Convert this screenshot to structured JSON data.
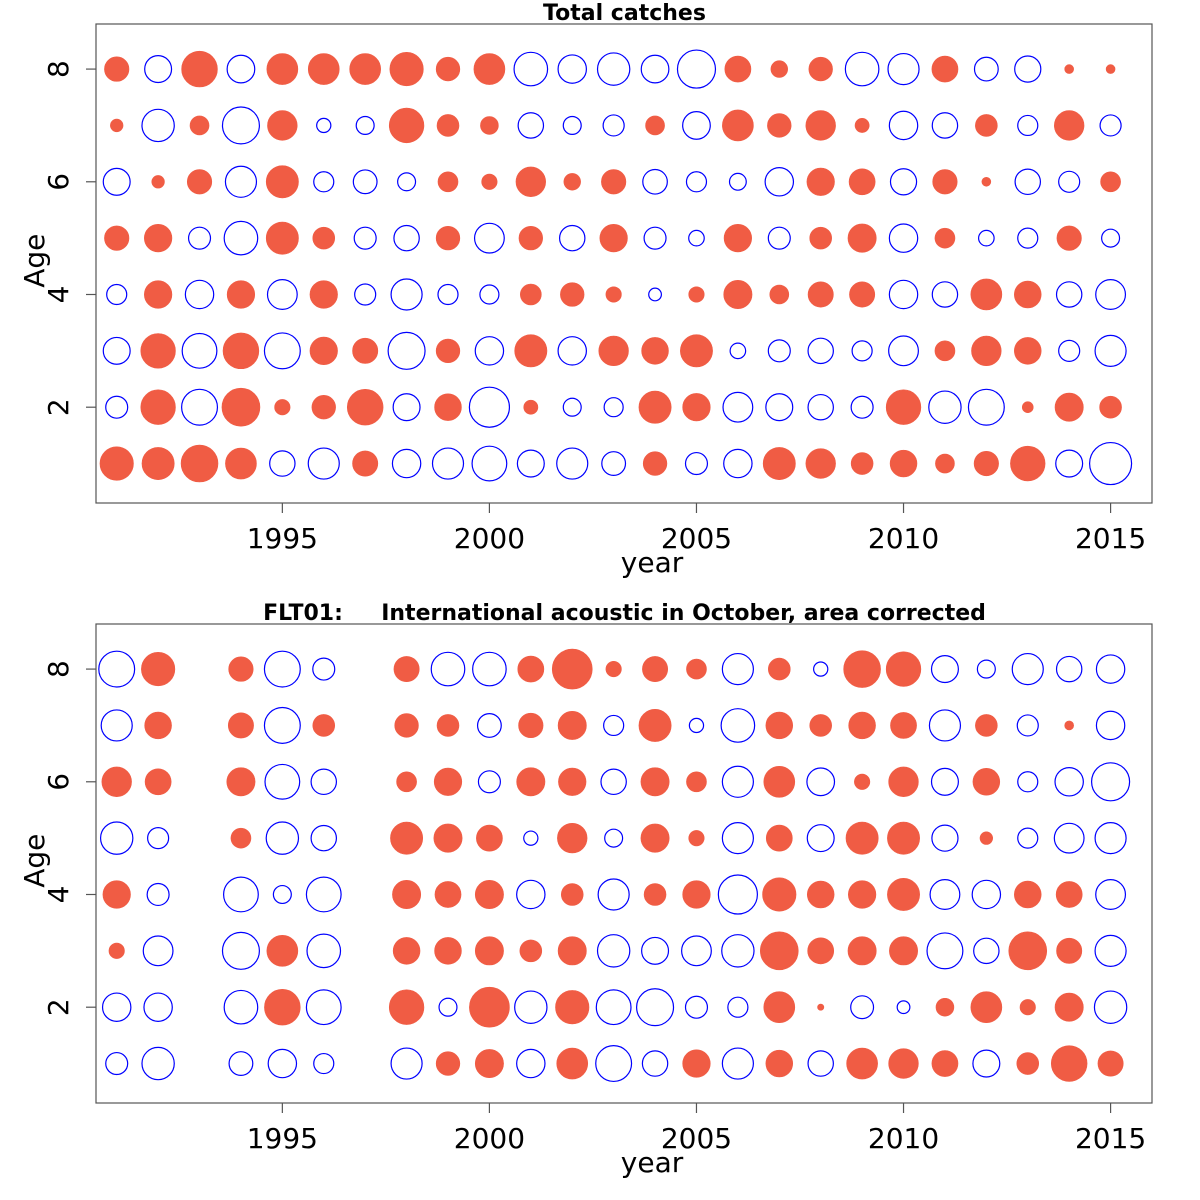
{
  "colors": {
    "positive": "#f05c44",
    "negative": "#0000ff"
  },
  "chart_data": [
    {
      "type": "bubble",
      "title": "Total catches",
      "xlabel": "year",
      "ylabel": "Age",
      "x_ticks": [
        1995,
        2000,
        2005,
        2010,
        2015
      ],
      "y_ticks": [
        2,
        4,
        6,
        8
      ],
      "xlim": [
        1990.5,
        2016
      ],
      "ylim": [
        0.3,
        8.8
      ],
      "years": [
        1991,
        1992,
        1993,
        1994,
        1995,
        1996,
        1997,
        1998,
        1999,
        2000,
        2001,
        2002,
        2003,
        2004,
        2005,
        2006,
        2007,
        2008,
        2009,
        2010,
        2011,
        2012,
        2013,
        2014,
        2015
      ],
      "ages": [
        1,
        2,
        3,
        4,
        5,
        6,
        7,
        8
      ],
      "residuals": [
        [
          1.4,
          1.3,
          1.7,
          1.2,
          -0.8,
          -1.2,
          0.8,
          -1.0,
          -1.2,
          -1.5,
          -0.9,
          -1.2,
          -0.7,
          0.7,
          -0.6,
          -1.0,
          1.3,
          1.1,
          0.6,
          0.9,
          0.45,
          0.75,
          1.5,
          -0.9,
          -2.2
        ],
        [
          -0.6,
          1.5,
          -1.6,
          1.8,
          0.3,
          0.7,
          1.6,
          -0.9,
          0.9,
          -2.0,
          0.25,
          -0.4,
          -0.45,
          1.3,
          0.95,
          -1.1,
          -0.9,
          -0.8,
          -0.6,
          1.5,
          -1.3,
          -1.6,
          0.15,
          1.0,
          0.6
        ],
        [
          -0.9,
          1.5,
          -1.5,
          1.6,
          -1.6,
          0.95,
          0.8,
          -1.7,
          0.7,
          -1.0,
          1.3,
          -1.0,
          1.1,
          0.9,
          1.3,
          -0.3,
          -0.6,
          -0.8,
          -0.5,
          -1.1,
          0.5,
          1.1,
          0.9,
          -0.55,
          -1.2
        ],
        [
          -0.5,
          0.95,
          -1.0,
          0.95,
          -1.1,
          0.95,
          -0.55,
          -1.2,
          -0.5,
          -0.45,
          0.55,
          0.7,
          0.3,
          -0.2,
          0.3,
          1.0,
          0.45,
          0.8,
          0.8,
          -1.0,
          -0.8,
          1.2,
          0.9,
          -0.8,
          -1.1
        ],
        [
          0.75,
          0.95,
          -0.6,
          -1.4,
          1.3,
          0.6,
          -0.6,
          -0.8,
          0.7,
          -1.1,
          0.7,
          -0.8,
          0.95,
          -0.6,
          -0.3,
          0.95,
          -0.6,
          0.6,
          1.0,
          -1.0,
          0.5,
          -0.3,
          -0.5,
          0.75,
          -0.4
        ],
        [
          -0.9,
          0.2,
          0.75,
          -1.2,
          1.3,
          -0.5,
          -0.7,
          -0.4,
          0.5,
          0.3,
          1.1,
          0.35,
          0.75,
          -0.75,
          -0.5,
          -0.35,
          -1.0,
          0.95,
          0.85,
          -0.85,
          0.75,
          0.1,
          -0.8,
          -0.55,
          0.5
        ],
        [
          0.2,
          -1.3,
          0.45,
          -1.7,
          1.1,
          -0.25,
          -0.4,
          1.5,
          0.6,
          0.4,
          -0.8,
          -0.4,
          -0.55,
          0.45,
          -0.95,
          1.2,
          0.7,
          1.1,
          0.25,
          -1.0,
          -0.8,
          0.6,
          -0.5,
          1.1,
          -0.55
        ],
        [
          0.75,
          -0.9,
          1.6,
          -0.95,
          1.2,
          1.2,
          1.2,
          1.4,
          0.7,
          1.2,
          -1.4,
          -1.0,
          -1.3,
          -0.95,
          -1.8,
          0.85,
          0.35,
          0.7,
          -1.4,
          -1.2,
          0.85,
          -0.7,
          -0.85,
          0.1,
          0.1
        ]
      ]
    },
    {
      "type": "bubble",
      "title": "FLT01:     International acoustic in October, area corrected",
      "xlabel": "year",
      "ylabel": "Age",
      "x_ticks": [
        1995,
        2000,
        2005,
        2010,
        2015
      ],
      "y_ticks": [
        2,
        4,
        6,
        8
      ],
      "xlim": [
        1990.5,
        2016
      ],
      "ylim": [
        0.3,
        8.8
      ],
      "years": [
        1991,
        1992,
        1993,
        1994,
        1995,
        1996,
        1997,
        1998,
        1999,
        2000,
        2001,
        2002,
        2003,
        2004,
        2005,
        2006,
        2007,
        2008,
        2009,
        2010,
        2011,
        2012,
        2013,
        2014,
        2015
      ],
      "ages": [
        1,
        2,
        3,
        4,
        5,
        6,
        7,
        8
      ],
      "residuals": [
        [
          -0.6,
          -1.3,
          null,
          -0.7,
          -1.0,
          -0.5,
          null,
          -1.2,
          0.7,
          1.0,
          -1.0,
          1.2,
          -1.6,
          -0.8,
          0.95,
          -1.2,
          0.9,
          -0.8,
          1.2,
          1.1,
          0.85,
          -0.9,
          0.6,
          1.6,
          0.8
        ],
        [
          -1.0,
          -1.0,
          null,
          -1.4,
          1.6,
          -1.5,
          null,
          1.5,
          -0.4,
          2.0,
          -1.3,
          1.4,
          -1.5,
          -1.7,
          -0.6,
          -0.5,
          1.2,
          0.05,
          -0.65,
          -0.2,
          0.4,
          1.2,
          0.3,
          1.0,
          -1.3
        ],
        [
          0.3,
          -1.1,
          null,
          -1.7,
          1.2,
          -1.4,
          null,
          0.9,
          0.9,
          1.0,
          0.6,
          1.0,
          -1.3,
          -0.9,
          -1.1,
          -1.3,
          1.8,
          0.85,
          1.0,
          1.0,
          -1.6,
          -0.8,
          1.8,
          0.8,
          -1.2
        ],
        [
          0.95,
          -0.6,
          null,
          -1.5,
          -0.4,
          -1.5,
          null,
          1.0,
          0.85,
          1.0,
          -1.0,
          0.6,
          -1.2,
          0.6,
          0.95,
          -1.9,
          1.4,
          0.9,
          0.95,
          1.3,
          -1.1,
          -1.0,
          0.9,
          0.85,
          -1.1
        ],
        [
          -1.3,
          -0.55,
          null,
          0.5,
          -1.3,
          -0.8,
          null,
          1.3,
          1.0,
          0.85,
          -0.25,
          1.1,
          -0.4,
          1.0,
          0.3,
          -1.2,
          0.85,
          -0.9,
          1.3,
          1.3,
          -0.85,
          0.2,
          -0.5,
          -1.1,
          -1.2
        ],
        [
          1.1,
          0.85,
          null,
          1.0,
          -1.5,
          -0.8,
          null,
          0.5,
          0.95,
          -0.6,
          1.0,
          0.95,
          -0.8,
          1.0,
          0.5,
          -1.2,
          1.2,
          -0.95,
          0.3,
          1.1,
          -0.9,
          0.9,
          -0.5,
          -1.0,
          -1.8
        ],
        [
          -1.2,
          0.9,
          null,
          0.8,
          -1.6,
          0.6,
          null,
          0.7,
          0.6,
          -0.7,
          0.75,
          1.0,
          -0.5,
          1.3,
          -0.25,
          -1.4,
          0.9,
          0.6,
          0.9,
          0.85,
          -1.2,
          0.6,
          -0.55,
          0.1,
          -1.0
        ],
        [
          -1.6,
          1.4,
          null,
          0.75,
          -1.6,
          -0.6,
          null,
          0.8,
          -1.4,
          -1.4,
          0.85,
          2.0,
          0.3,
          0.8,
          0.5,
          -1.2,
          0.6,
          -0.25,
          1.7,
          1.5,
          -0.9,
          -0.4,
          -1.2,
          -0.8,
          -1.0
        ]
      ]
    }
  ]
}
